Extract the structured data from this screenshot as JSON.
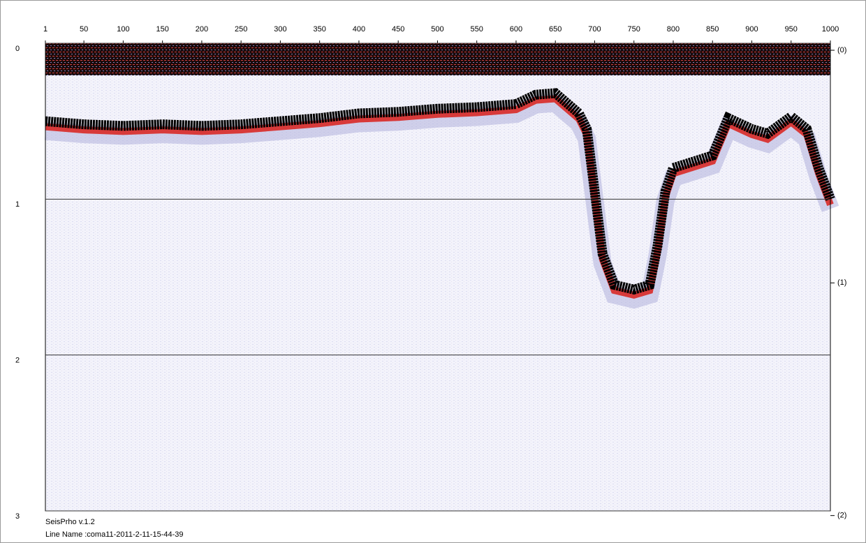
{
  "chart_data": {
    "type": "seismic",
    "x": [
      1,
      50,
      100,
      150,
      200,
      250,
      300,
      350,
      400,
      450,
      500,
      550,
      600,
      625,
      650,
      680,
      690,
      700,
      710,
      725,
      750,
      770,
      780,
      790,
      800,
      850,
      870,
      900,
      920,
      950,
      970,
      985,
      1000
    ],
    "series": [
      {
        "color": "#000000",
        "values": [
          0.5,
          0.52,
          0.53,
          0.52,
          0.53,
          0.52,
          0.5,
          0.48,
          0.45,
          0.44,
          0.42,
          0.41,
          0.39,
          0.33,
          0.32,
          0.45,
          0.55,
          0.95,
          1.35,
          1.55,
          1.58,
          1.55,
          1.3,
          0.95,
          0.8,
          0.72,
          0.48,
          0.55,
          0.58,
          0.47,
          0.55,
          0.8,
          1.0
        ]
      }
    ],
    "xlim": [
      1,
      1000
    ],
    "xticks": [
      1,
      50,
      100,
      150,
      200,
      250,
      300,
      350,
      400,
      450,
      500,
      550,
      600,
      650,
      700,
      750,
      800,
      850,
      900,
      950,
      1000
    ],
    "ylim": [
      0,
      3
    ],
    "yticks": [
      0,
      1,
      2,
      3
    ],
    "y2lim": [
      -0.03,
      1.98
    ],
    "y2ticks": [
      {
        "value": 0,
        "label": "(0)"
      },
      {
        "value": 1,
        "label": "(1)"
      },
      {
        "value": 2,
        "label": "(2)"
      }
    ],
    "grid": true,
    "software": "SeisPrho v.1.2",
    "line_name": "Line Name :coma11-2011-2-11-15-44-39"
  }
}
